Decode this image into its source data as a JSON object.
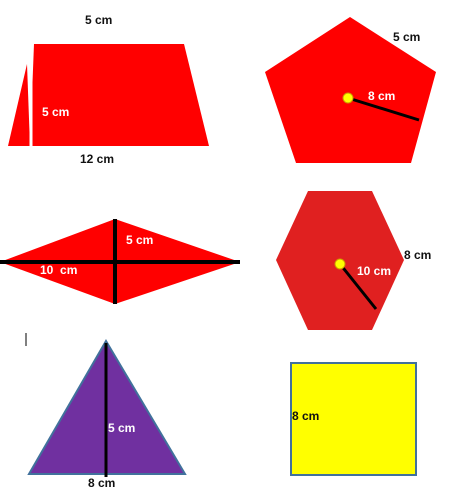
{
  "colors": {
    "red": "#ff0000",
    "hexagon_red": "#e02020",
    "purple": "#7030a0",
    "purple_outline": "#41719c",
    "yellow": "#ffff00",
    "center_dot": "#ffff00",
    "line": "#000000"
  },
  "shapes": {
    "trapezoid": {
      "top_label": "5 cm",
      "height_label": "5 cm",
      "base_label": "12 cm"
    },
    "pentagon": {
      "side_label": "5 cm",
      "radius_label": "8 cm"
    },
    "rhombus": {
      "half_diagonal_label": "5 cm",
      "diagonal_label": "10  cm"
    },
    "hexagon": {
      "side_label": "8 cm",
      "radius_label": "10 cm"
    },
    "triangle": {
      "height_label": "5 cm",
      "base_label": "8 cm"
    },
    "square": {
      "side_label": "8 cm"
    }
  }
}
